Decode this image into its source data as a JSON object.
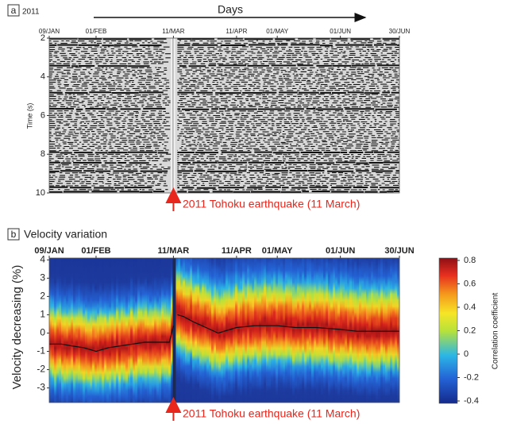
{
  "chart_data": [
    {
      "type": "seismogram",
      "panel_label": "a",
      "year": "2011",
      "x_axis_title": "Days",
      "xlim": [
        9,
        181
      ],
      "xticks": [
        {
          "value": 9,
          "label": "09/JAN"
        },
        {
          "value": 32,
          "label": "01/FEB"
        },
        {
          "value": 70,
          "label": "11/MAR"
        },
        {
          "value": 101,
          "label": "11/APR"
        },
        {
          "value": 121,
          "label": "01/MAY"
        },
        {
          "value": 152,
          "label": "01/JUN"
        },
        {
          "value": 181,
          "label": "30/JUN"
        }
      ],
      "ylabel": "Time (s)",
      "ylim": [
        10,
        2
      ],
      "yticks": [
        2,
        4,
        6,
        8,
        10
      ],
      "annotation": "2011 Tohoku earthquake (11 March)"
    },
    {
      "type": "line",
      "panel_label": "b",
      "title": "Velocity variation",
      "xlim": [
        9,
        181
      ],
      "xticks": [
        {
          "value": 9,
          "label": "09/JAN"
        },
        {
          "value": 32,
          "label": "01/FEB"
        },
        {
          "value": 70,
          "label": "11/MAR"
        },
        {
          "value": 101,
          "label": "11/APR"
        },
        {
          "value": 121,
          "label": "01/MAY"
        },
        {
          "value": 152,
          "label": "01/JUN"
        },
        {
          "value": 181,
          "label": "30/JUN"
        }
      ],
      "ylabel": "Velocity decreasing (%)",
      "ylim": [
        -3.8,
        4.1
      ],
      "yticks": [
        4,
        3,
        2,
        1,
        0,
        -1,
        -2,
        -3
      ],
      "x": [
        9,
        15,
        20,
        26,
        32,
        38,
        44,
        50,
        56,
        62,
        68,
        70,
        71,
        72,
        75,
        80,
        86,
        92,
        101,
        110,
        121,
        130,
        140,
        152,
        160,
        170,
        181
      ],
      "series": [
        {
          "color": "#111111",
          "values": [
            -0.6,
            -0.6,
            -0.7,
            -0.8,
            -1.0,
            -0.8,
            -0.7,
            -0.6,
            -0.5,
            -0.5,
            -0.5,
            0.4,
            null,
            1.0,
            0.9,
            0.6,
            0.3,
            0.0,
            0.3,
            0.4,
            0.4,
            0.3,
            0.3,
            0.2,
            0.1,
            0.1,
            0.1
          ]
        }
      ],
      "colorbar": {
        "label": "Correlation coefficient",
        "clim": [
          -0.4,
          0.8
        ],
        "ticks": [
          0.8,
          0.6,
          0.4,
          0.2,
          0,
          -0.2,
          -0.4
        ]
      },
      "annotation": "2011 Tohoku earthquake (11 March)"
    }
  ]
}
